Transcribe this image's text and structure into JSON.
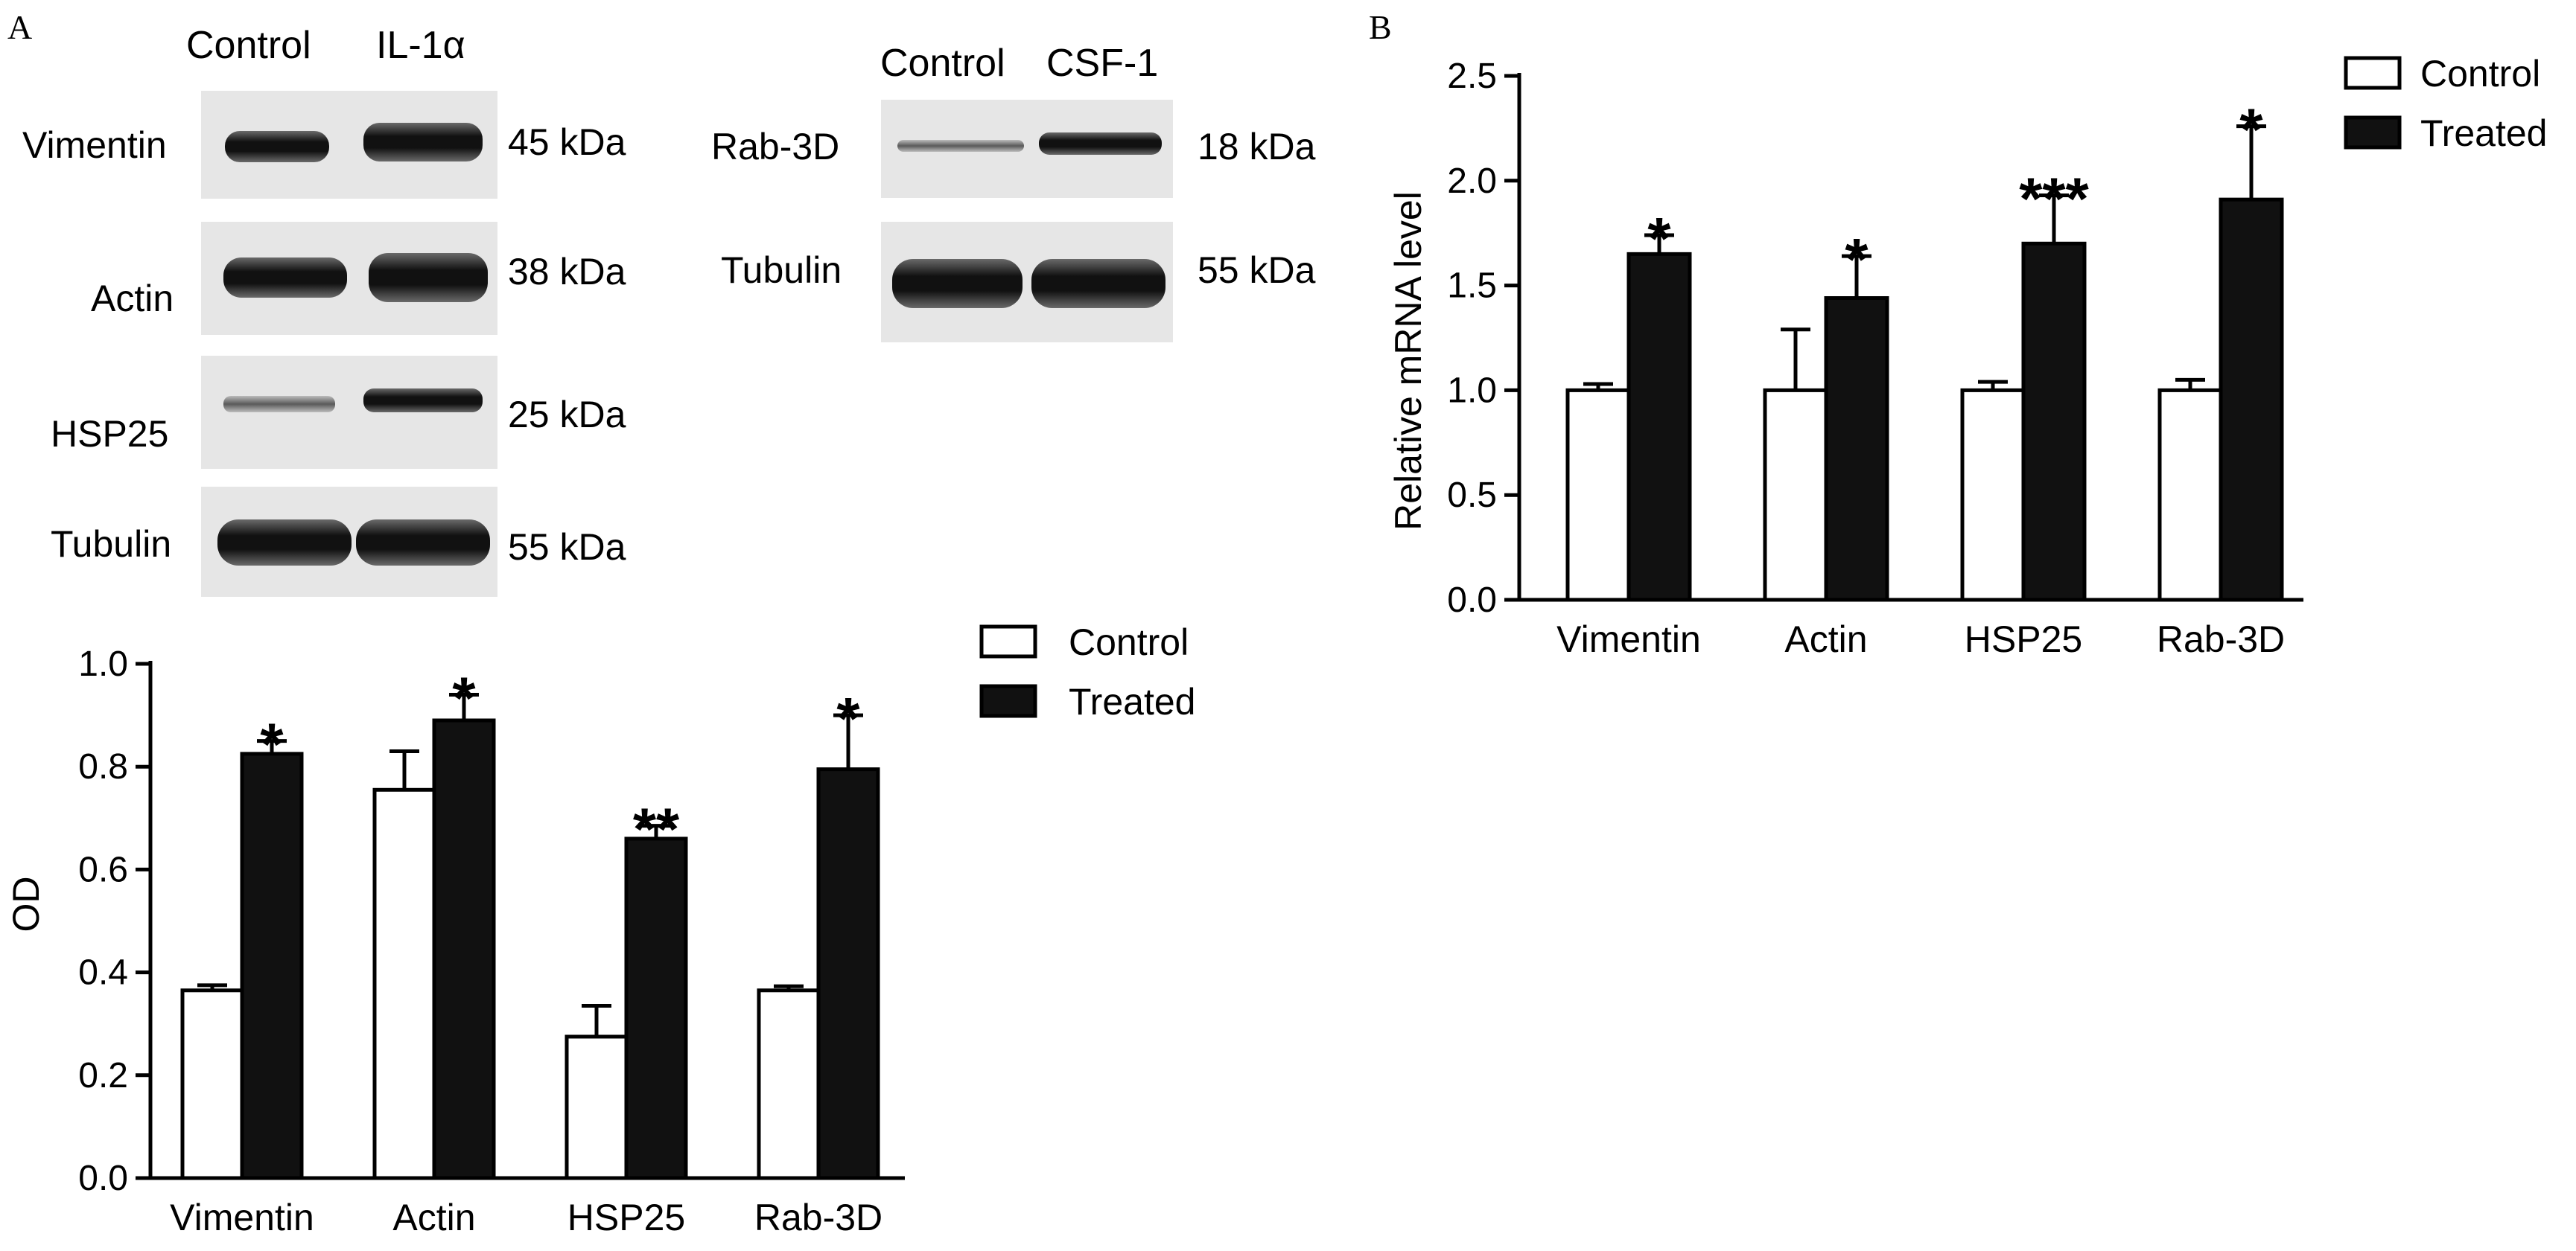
{
  "panels": {
    "a_letter": "A",
    "b_letter": "B"
  },
  "blots": [
    {
      "header": [
        "Control",
        "IL-1α"
      ],
      "rows": [
        {
          "protein": "Vimentin",
          "size": "45 kDa"
        },
        {
          "protein": "Actin",
          "size": "38 kDa"
        },
        {
          "protein": "HSP25",
          "size": "25 kDa"
        },
        {
          "protein": "Tubulin",
          "size": "55 kDa"
        }
      ]
    },
    {
      "header": [
        "Control",
        "CSF-1"
      ],
      "rows": [
        {
          "protein": "Rab-3D",
          "size": "18 kDa"
        },
        {
          "protein": "Tubulin",
          "size": "55 kDa"
        }
      ]
    }
  ],
  "colors": {
    "control": "#ffffff",
    "treated": "#111111",
    "stroke": "#000000"
  },
  "chart_data": [
    {
      "type": "bar",
      "ylabel": "OD",
      "ylim": [
        0,
        1.0
      ],
      "yticks": [
        "0.0",
        "0.2",
        "0.4",
        "0.6",
        "0.8",
        "1.0"
      ],
      "categories": [
        "Vimentin",
        "Actin",
        "HSP25",
        "Rab-3D"
      ],
      "series": [
        {
          "name": "Control",
          "values": [
            0.365,
            0.755,
            0.275,
            0.365
          ],
          "errors": [
            0.01,
            0.075,
            0.06,
            0.008
          ]
        },
        {
          "name": "Treated",
          "values": [
            0.825,
            0.89,
            0.66,
            0.795
          ],
          "errors": [
            0.025,
            0.05,
            0.025,
            0.105
          ]
        }
      ],
      "significance": [
        "*",
        "*",
        "**",
        "*"
      ],
      "legend": "top-right"
    },
    {
      "type": "bar",
      "ylabel": "Relative mRNA level",
      "ylim": [
        0,
        2.5
      ],
      "yticks": [
        "0.0",
        "0.5",
        "1.0",
        "1.5",
        "2.0",
        "2.5"
      ],
      "categories": [
        "Vimentin",
        "Actin",
        "HSP25",
        "Rab-3D"
      ],
      "series": [
        {
          "name": "Control",
          "values": [
            1.0,
            1.0,
            1.0,
            1.0
          ],
          "errors": [
            0.03,
            0.29,
            0.04,
            0.05
          ]
        },
        {
          "name": "Treated",
          "values": [
            1.65,
            1.44,
            1.7,
            1.91
          ],
          "errors": [
            0.09,
            0.2,
            0.23,
            0.35
          ]
        }
      ],
      "significance": [
        "*",
        "*",
        "***",
        "*"
      ],
      "legend": "top-right"
    }
  ]
}
